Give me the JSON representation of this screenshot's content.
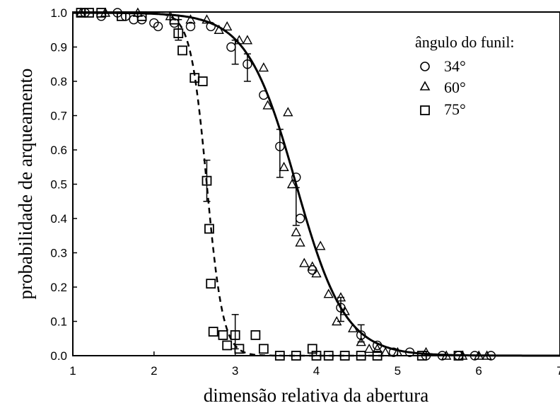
{
  "chart_data": {
    "type": "scatter",
    "xlabel": "dimensão relativa da abertura",
    "ylabel": "probabilidade de arqueamento",
    "xlim": [
      1,
      7
    ],
    "ylim": [
      0,
      1.0
    ],
    "x_ticks": [
      "1",
      "2",
      "3",
      "4",
      "5",
      "6",
      "7"
    ],
    "y_ticks": [
      "0.0",
      "0.1",
      "0.2",
      "0.3",
      "0.4",
      "0.5",
      "0.6",
      "0.7",
      "0.8",
      "0.9",
      "1.0"
    ],
    "legend": {
      "title": "ângulo do funil:",
      "position": "top-right",
      "entries": [
        {
          "marker": "circle",
          "label": "34°"
        },
        {
          "marker": "triangle",
          "label": "60°"
        },
        {
          "marker": "square",
          "label": "75°"
        }
      ]
    },
    "series": [
      {
        "name": "34°",
        "marker": "circle",
        "x": [
          1.15,
          1.35,
          1.55,
          1.65,
          1.75,
          1.85,
          2.0,
          2.05,
          2.25,
          2.45,
          2.7,
          2.95,
          3.15,
          3.35,
          3.55,
          3.75,
          3.8,
          3.95,
          4.3,
          4.55,
          4.75,
          4.95,
          5.15,
          5.35,
          5.55,
          5.75,
          5.95,
          6.15
        ],
        "y": [
          1.0,
          0.99,
          1.0,
          0.99,
          0.98,
          0.98,
          0.97,
          0.96,
          0.97,
          0.96,
          0.96,
          0.9,
          0.85,
          0.76,
          0.61,
          0.52,
          0.4,
          0.25,
          0.14,
          0.06,
          0.03,
          0.01,
          0.01,
          0.0,
          0.0,
          0.0,
          0.0,
          0.0
        ]
      },
      {
        "name": "60°",
        "marker": "triangle",
        "x": [
          1.1,
          1.4,
          1.8,
          2.2,
          2.45,
          2.65,
          2.8,
          2.9,
          3.05,
          3.15,
          3.35,
          3.4,
          3.6,
          3.65,
          3.7,
          3.75,
          3.8,
          3.85,
          3.95,
          4.0,
          4.05,
          4.15,
          4.25,
          4.3,
          4.35,
          4.45,
          4.55,
          4.65,
          4.75,
          4.85,
          5.0,
          5.35,
          5.6,
          5.8,
          6.0,
          6.1
        ],
        "y": [
          1.0,
          1.0,
          1.0,
          0.99,
          0.98,
          0.98,
          0.95,
          0.96,
          0.92,
          0.92,
          0.84,
          0.73,
          0.55,
          0.71,
          0.5,
          0.36,
          0.33,
          0.27,
          0.26,
          0.24,
          0.32,
          0.18,
          0.1,
          0.17,
          0.13,
          0.08,
          0.04,
          0.02,
          0.02,
          0.01,
          0.01,
          0.01,
          0.0,
          0.0,
          0.0,
          0.0
        ]
      },
      {
        "name": "75°",
        "marker": "square",
        "x": [
          1.1,
          1.2,
          1.35,
          1.6,
          1.85,
          2.25,
          2.3,
          2.35,
          2.5,
          2.6,
          2.65,
          2.68,
          2.7,
          2.73,
          2.85,
          2.9,
          3.0,
          3.05,
          3.25,
          3.35,
          3.55,
          3.75,
          3.95,
          4.0,
          4.15,
          4.35,
          4.55,
          4.75,
          5.3,
          5.75
        ],
        "y": [
          1.0,
          1.0,
          1.0,
          0.99,
          0.99,
          0.98,
          0.94,
          0.89,
          0.81,
          0.8,
          0.51,
          0.37,
          0.21,
          0.07,
          0.06,
          0.03,
          0.06,
          0.02,
          0.06,
          0.02,
          0.0,
          0.0,
          0.02,
          0.0,
          0.0,
          0.0,
          0.0,
          0.0,
          0.0,
          0.0
        ]
      }
    ],
    "error_bars": [
      {
        "x": 3.0,
        "y": 0.89,
        "low": 0.85,
        "high": 0.92
      },
      {
        "x": 3.15,
        "y": 0.84,
        "low": 0.8,
        "high": 0.88
      },
      {
        "x": 3.55,
        "y": 0.61,
        "low": 0.52,
        "high": 0.66
      },
      {
        "x": 3.75,
        "y": 0.43,
        "low": 0.38,
        "high": 0.49
      },
      {
        "x": 4.3,
        "y": 0.14,
        "low": 0.1,
        "high": 0.17
      },
      {
        "x": 4.55,
        "y": 0.06,
        "low": 0.04,
        "high": 0.09
      },
      {
        "x": 2.3,
        "y": 0.95,
        "low": 0.92,
        "high": 0.98
      },
      {
        "x": 2.65,
        "y": 0.51,
        "low": 0.45,
        "high": 0.57
      },
      {
        "x": 3.0,
        "y": 0.07,
        "low": 0.02,
        "high": 0.12
      }
    ],
    "fits": [
      {
        "series": "34° / 60°",
        "style": "solid",
        "type": "logistic",
        "x0": 3.75,
        "k": 3.3
      },
      {
        "series": "75°",
        "style": "dashed",
        "type": "logistic",
        "x0": 2.65,
        "k": 10
      }
    ],
    "grid": false
  }
}
